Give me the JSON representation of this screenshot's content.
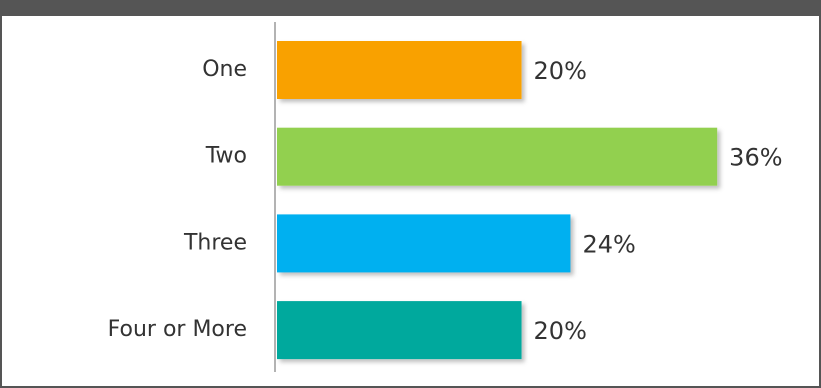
{
  "chart_data": {
    "type": "bar",
    "orientation": "horizontal",
    "categories": [
      "One",
      "Two",
      "Three",
      "Four or More"
    ],
    "values": [
      20,
      36,
      24,
      20
    ],
    "value_labels": [
      "20%",
      "36%",
      "24%",
      "20%"
    ],
    "colors": [
      "#F9A100",
      "#92D050",
      "#00B0F0",
      "#00A99D"
    ],
    "xlim": [
      0,
      44
    ],
    "grid": false,
    "legend": "none",
    "title": "",
    "xlabel": "",
    "ylabel": ""
  }
}
